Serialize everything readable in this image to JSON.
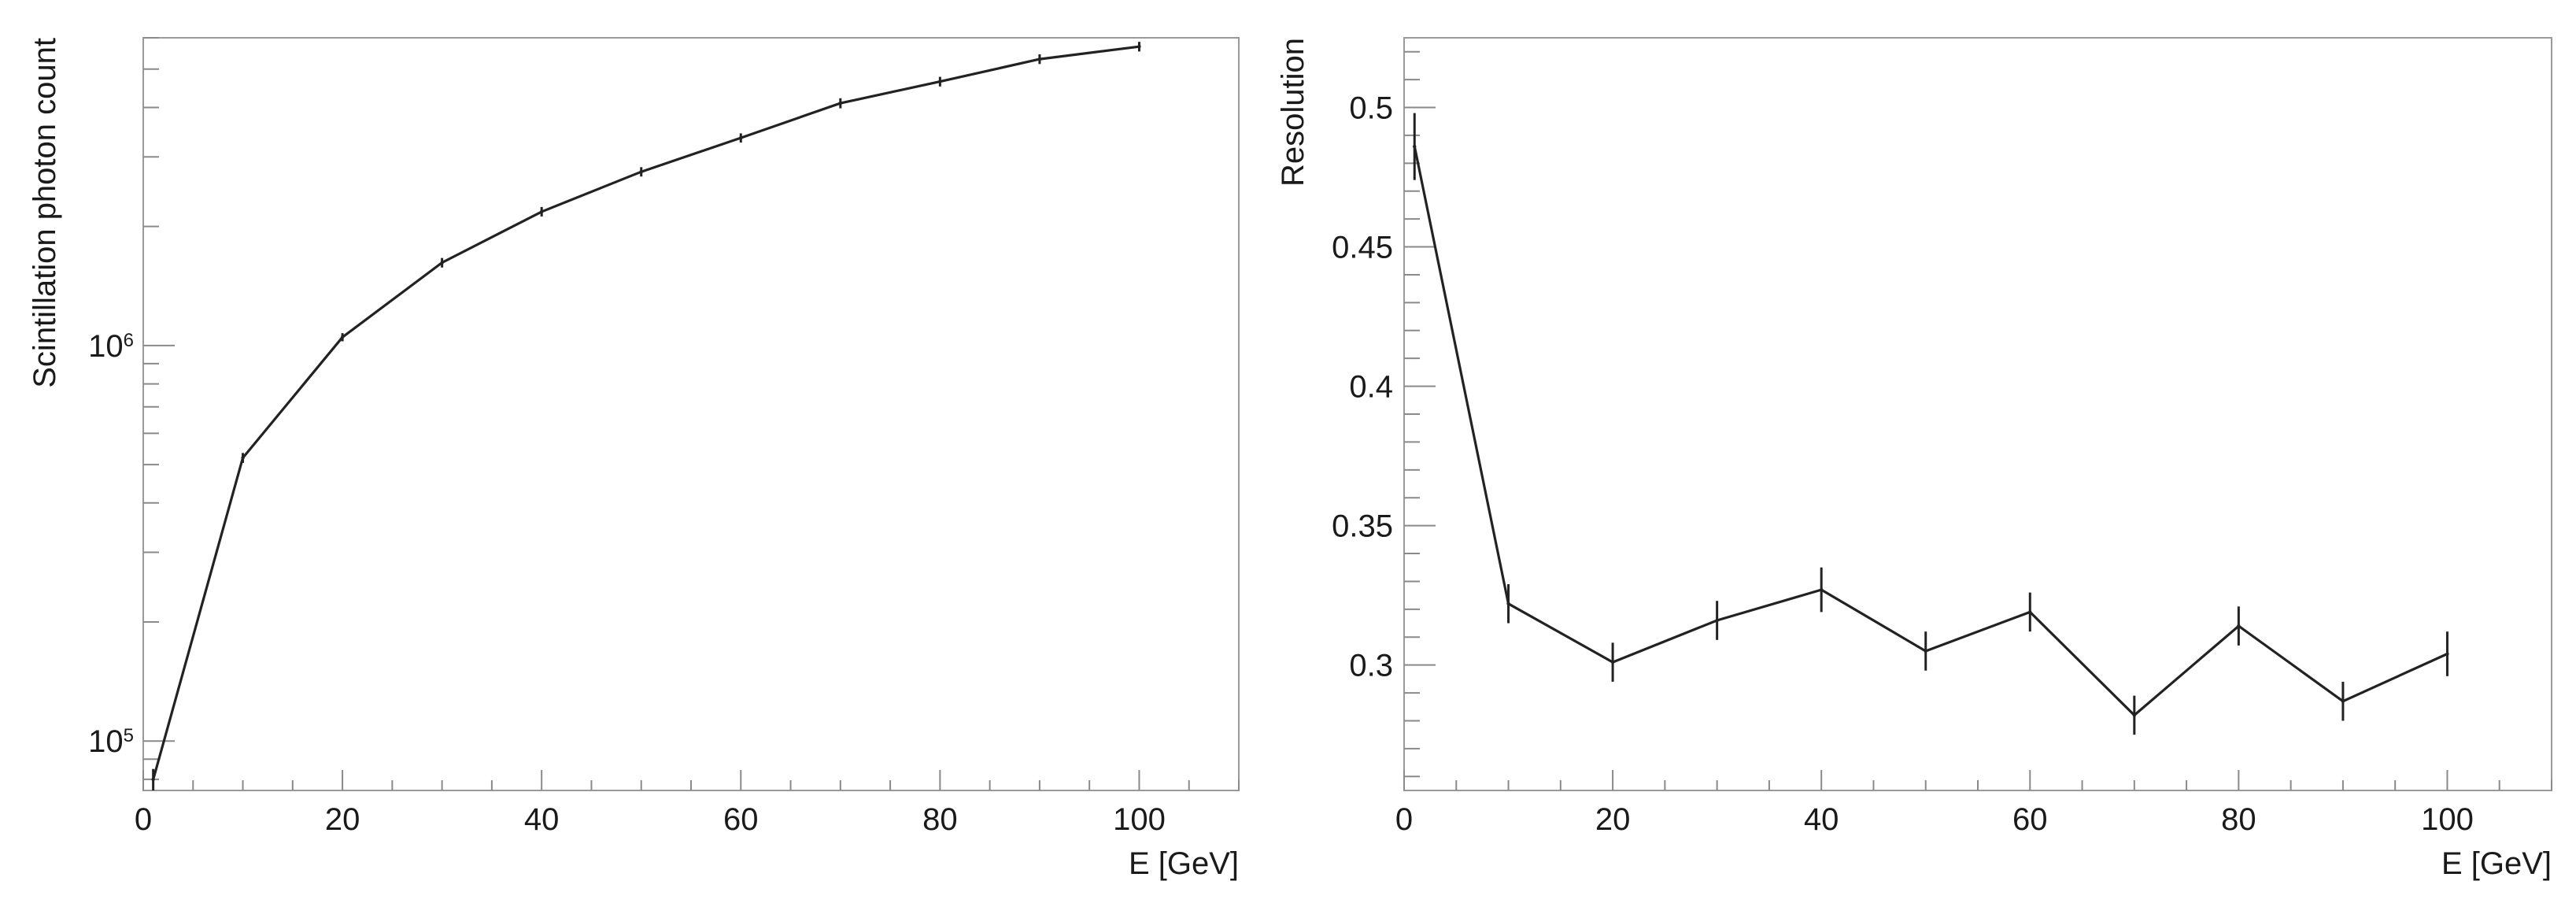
{
  "chart_data": [
    {
      "type": "line",
      "title": "",
      "xlabel": "E [GeV]",
      "ylabel": "Scintillation photon count",
      "xlim": [
        0,
        110
      ],
      "ylim": [
        75000,
        6000000
      ],
      "yscale": "log",
      "grid": false,
      "legend": "none",
      "x_ticks": [
        "0",
        "20",
        "40",
        "60",
        "80",
        "100"
      ],
      "y_ticks": [
        {
          "base": "10",
          "exp": "5",
          "value": 100000
        },
        {
          "base": "10",
          "exp": "6",
          "value": 1000000
        }
      ],
      "series": [
        {
          "x": [
            1,
            10,
            20,
            30,
            40,
            50,
            60,
            70,
            80,
            90,
            100
          ],
          "y": [
            80000,
            520000,
            1050000,
            1620000,
            2180000,
            2750000,
            3350000,
            4100000,
            4650000,
            5300000,
            5700000
          ],
          "yerr": [
            5000,
            15000,
            25000,
            45000,
            60000,
            75000,
            90000,
            120000,
            130000,
            150000,
            160000
          ]
        }
      ]
    },
    {
      "type": "line",
      "title": "",
      "xlabel": "E [GeV]",
      "ylabel": "Resolution",
      "xlim": [
        0,
        110
      ],
      "ylim": [
        0.255,
        0.525
      ],
      "yscale": "linear",
      "grid": false,
      "legend": "none",
      "x_ticks": [
        "0",
        "20",
        "40",
        "60",
        "80",
        "100"
      ],
      "y_ticks": [
        "0.3",
        "0.35",
        "0.4",
        "0.45",
        "0.5"
      ],
      "series": [
        {
          "x": [
            1,
            10,
            20,
            30,
            40,
            50,
            60,
            70,
            80,
            90,
            100
          ],
          "y": [
            0.486,
            0.322,
            0.301,
            0.316,
            0.327,
            0.305,
            0.319,
            0.282,
            0.314,
            0.287,
            0.304
          ],
          "yerr": [
            0.012,
            0.007,
            0.007,
            0.007,
            0.008,
            0.007,
            0.007,
            0.007,
            0.007,
            0.007,
            0.008
          ]
        }
      ]
    }
  ]
}
